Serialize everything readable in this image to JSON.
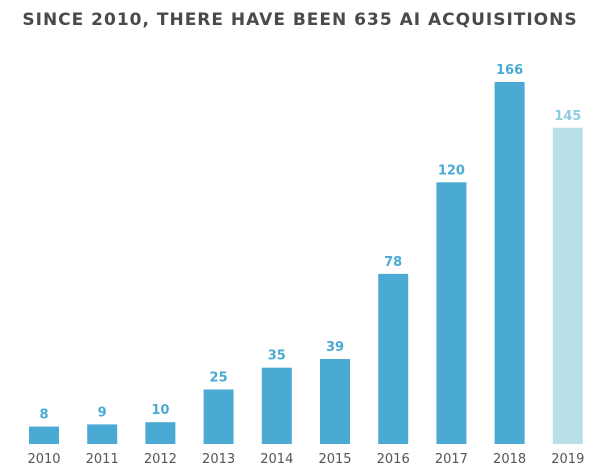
{
  "chart_data": {
    "type": "bar",
    "title": "SINCE 2010, THERE HAVE BEEN 635 AI ACQUISITIONS",
    "categories": [
      "2010",
      "2011",
      "2012",
      "2013",
      "2014",
      "2015",
      "2016",
      "2017",
      "2018",
      "2019"
    ],
    "values": [
      8,
      9,
      10,
      25,
      35,
      39,
      78,
      120,
      166,
      145
    ],
    "ylim": [
      0,
      166
    ],
    "grid": false,
    "legend": "none",
    "colors": {
      "bar": "#4baad3",
      "bar_highlight": "#b8dfe8",
      "value_label": "#4baad3",
      "value_label_highlight": "#8fcde0"
    },
    "highlight_index": 9
  }
}
